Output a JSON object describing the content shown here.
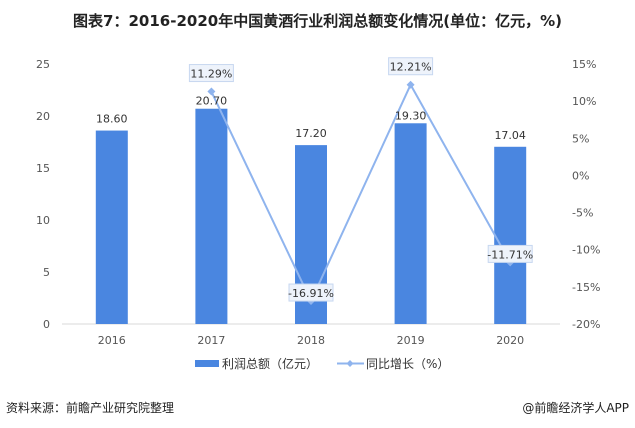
{
  "title": "图表7：2016-2020年中国黄酒行业利润总额变化情况(单位：亿元，%)",
  "source": "资料来源：前瞻产业研究院整理",
  "brand": "@前瞻经济学人APP",
  "chart_data": {
    "type": "bar",
    "categories": [
      "2016",
      "2017",
      "2018",
      "2019",
      "2020"
    ],
    "series": [
      {
        "name": "利润总额（亿元）",
        "type": "bar",
        "axis": "left",
        "values": [
          18.6,
          20.7,
          17.2,
          19.3,
          17.04
        ],
        "labels": [
          "18.60",
          "20.70",
          "17.20",
          "19.30",
          "17.04"
        ],
        "color": "#4a86e0"
      },
      {
        "name": "同比增长（%）",
        "type": "line",
        "axis": "right",
        "values": [
          null,
          11.29,
          -16.91,
          12.21,
          -11.71
        ],
        "labels": [
          "",
          "11.29%",
          "-16.91%",
          "12.21%",
          "-11.71%"
        ],
        "color": "#8fb4ee"
      }
    ],
    "left_axis": {
      "ylim": [
        0,
        25
      ],
      "ticks": [
        "0",
        "5",
        "10",
        "15",
        "20",
        "25"
      ]
    },
    "right_axis": {
      "ylim": [
        -20,
        15
      ],
      "ticks": [
        "-20%",
        "-15%",
        "-10%",
        "-5%",
        "0%",
        "5%",
        "10%",
        "15%"
      ]
    },
    "grid": false,
    "legend": "bottom"
  }
}
